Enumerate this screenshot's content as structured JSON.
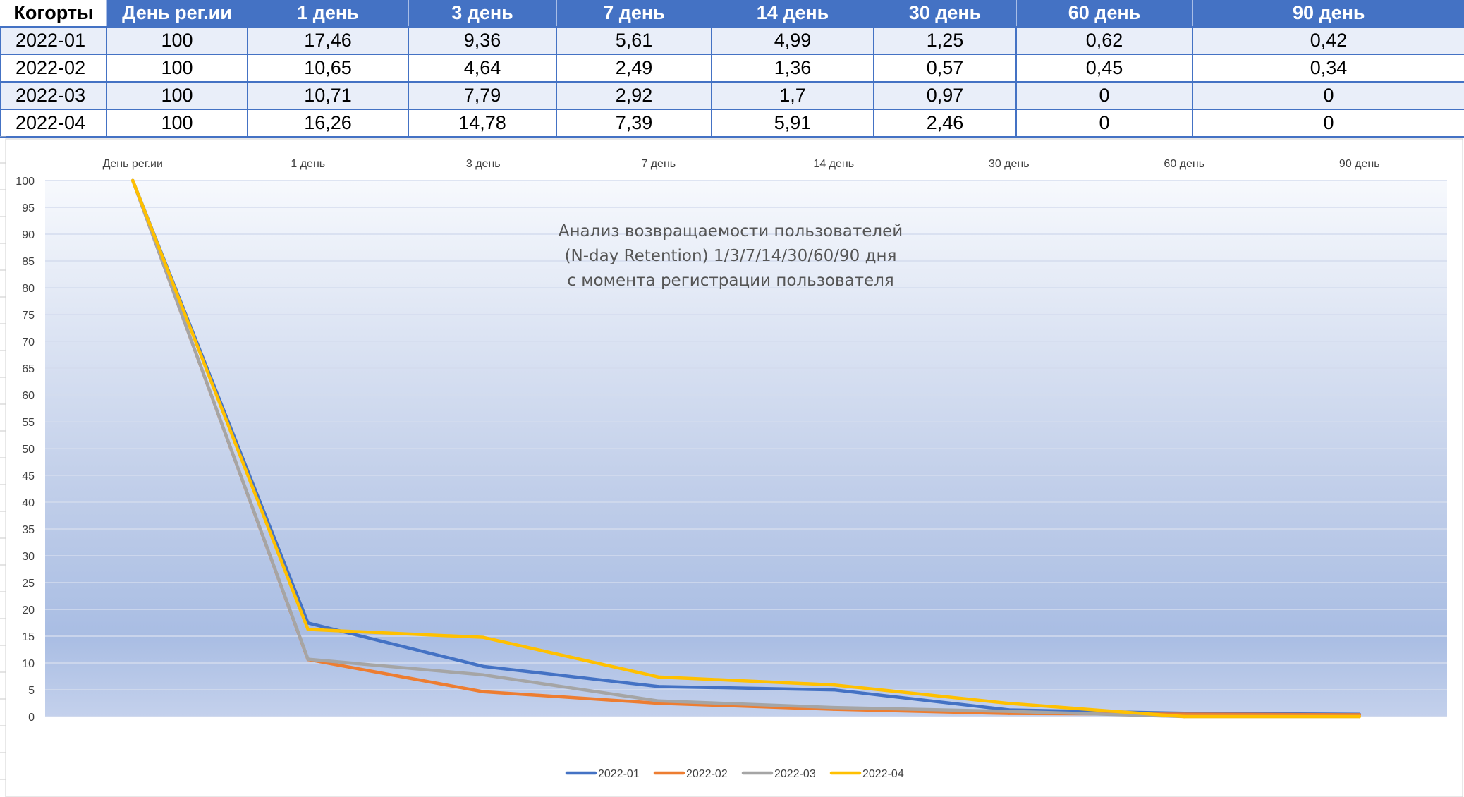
{
  "table": {
    "headers": [
      "Когорты",
      "День рег.ии",
      "1 день",
      "3 день",
      "7 день",
      "14 день",
      "30 день",
      "60 день",
      "90 день"
    ],
    "rows": [
      [
        "2022-01",
        "100",
        "17,46",
        "9,36",
        "5,61",
        "4,99",
        "1,25",
        "0,62",
        "0,42"
      ],
      [
        "2022-02",
        "100",
        "10,65",
        "4,64",
        "2,49",
        "1,36",
        "0,57",
        "0,45",
        "0,34"
      ],
      [
        "2022-03",
        "100",
        "10,71",
        "7,79",
        "2,92",
        "1,7",
        "0,97",
        "0",
        "0"
      ],
      [
        "2022-04",
        "100",
        "16,26",
        "14,78",
        "7,39",
        "5,91",
        "2,46",
        "0",
        "0"
      ]
    ]
  },
  "chart_data": {
    "type": "line",
    "title_lines": [
      "Анализ возвращаемости пользователей",
      "(N-day Retention) 1/3/7/14/30/60/90 дня",
      "с момента регистрации пользователя"
    ],
    "categories": [
      "День рег.ии",
      "1 день",
      "3 день",
      "7 день",
      "14 день",
      "30 день",
      "60 день",
      "90 день"
    ],
    "ylim": [
      0,
      100
    ],
    "y_ticks": [
      0,
      5,
      10,
      15,
      20,
      25,
      30,
      35,
      40,
      45,
      50,
      55,
      60,
      65,
      70,
      75,
      80,
      85,
      90,
      95,
      100
    ],
    "x_axis_position": "top",
    "grid": true,
    "legend_position": "bottom",
    "series": [
      {
        "name": "2022-01",
        "color": "#4472c4",
        "values": [
          100,
          17.46,
          9.36,
          5.61,
          4.99,
          1.25,
          0.62,
          0.42
        ]
      },
      {
        "name": "2022-02",
        "color": "#ed7d31",
        "values": [
          100,
          10.65,
          4.64,
          2.49,
          1.36,
          0.57,
          0.45,
          0.34
        ]
      },
      {
        "name": "2022-03",
        "color": "#a5a5a5",
        "values": [
          100,
          10.71,
          7.79,
          2.92,
          1.7,
          0.97,
          0,
          0
        ]
      },
      {
        "name": "2022-04",
        "color": "#ffc000",
        "values": [
          100,
          16.26,
          14.78,
          7.39,
          5.91,
          2.46,
          0,
          0
        ]
      }
    ]
  }
}
